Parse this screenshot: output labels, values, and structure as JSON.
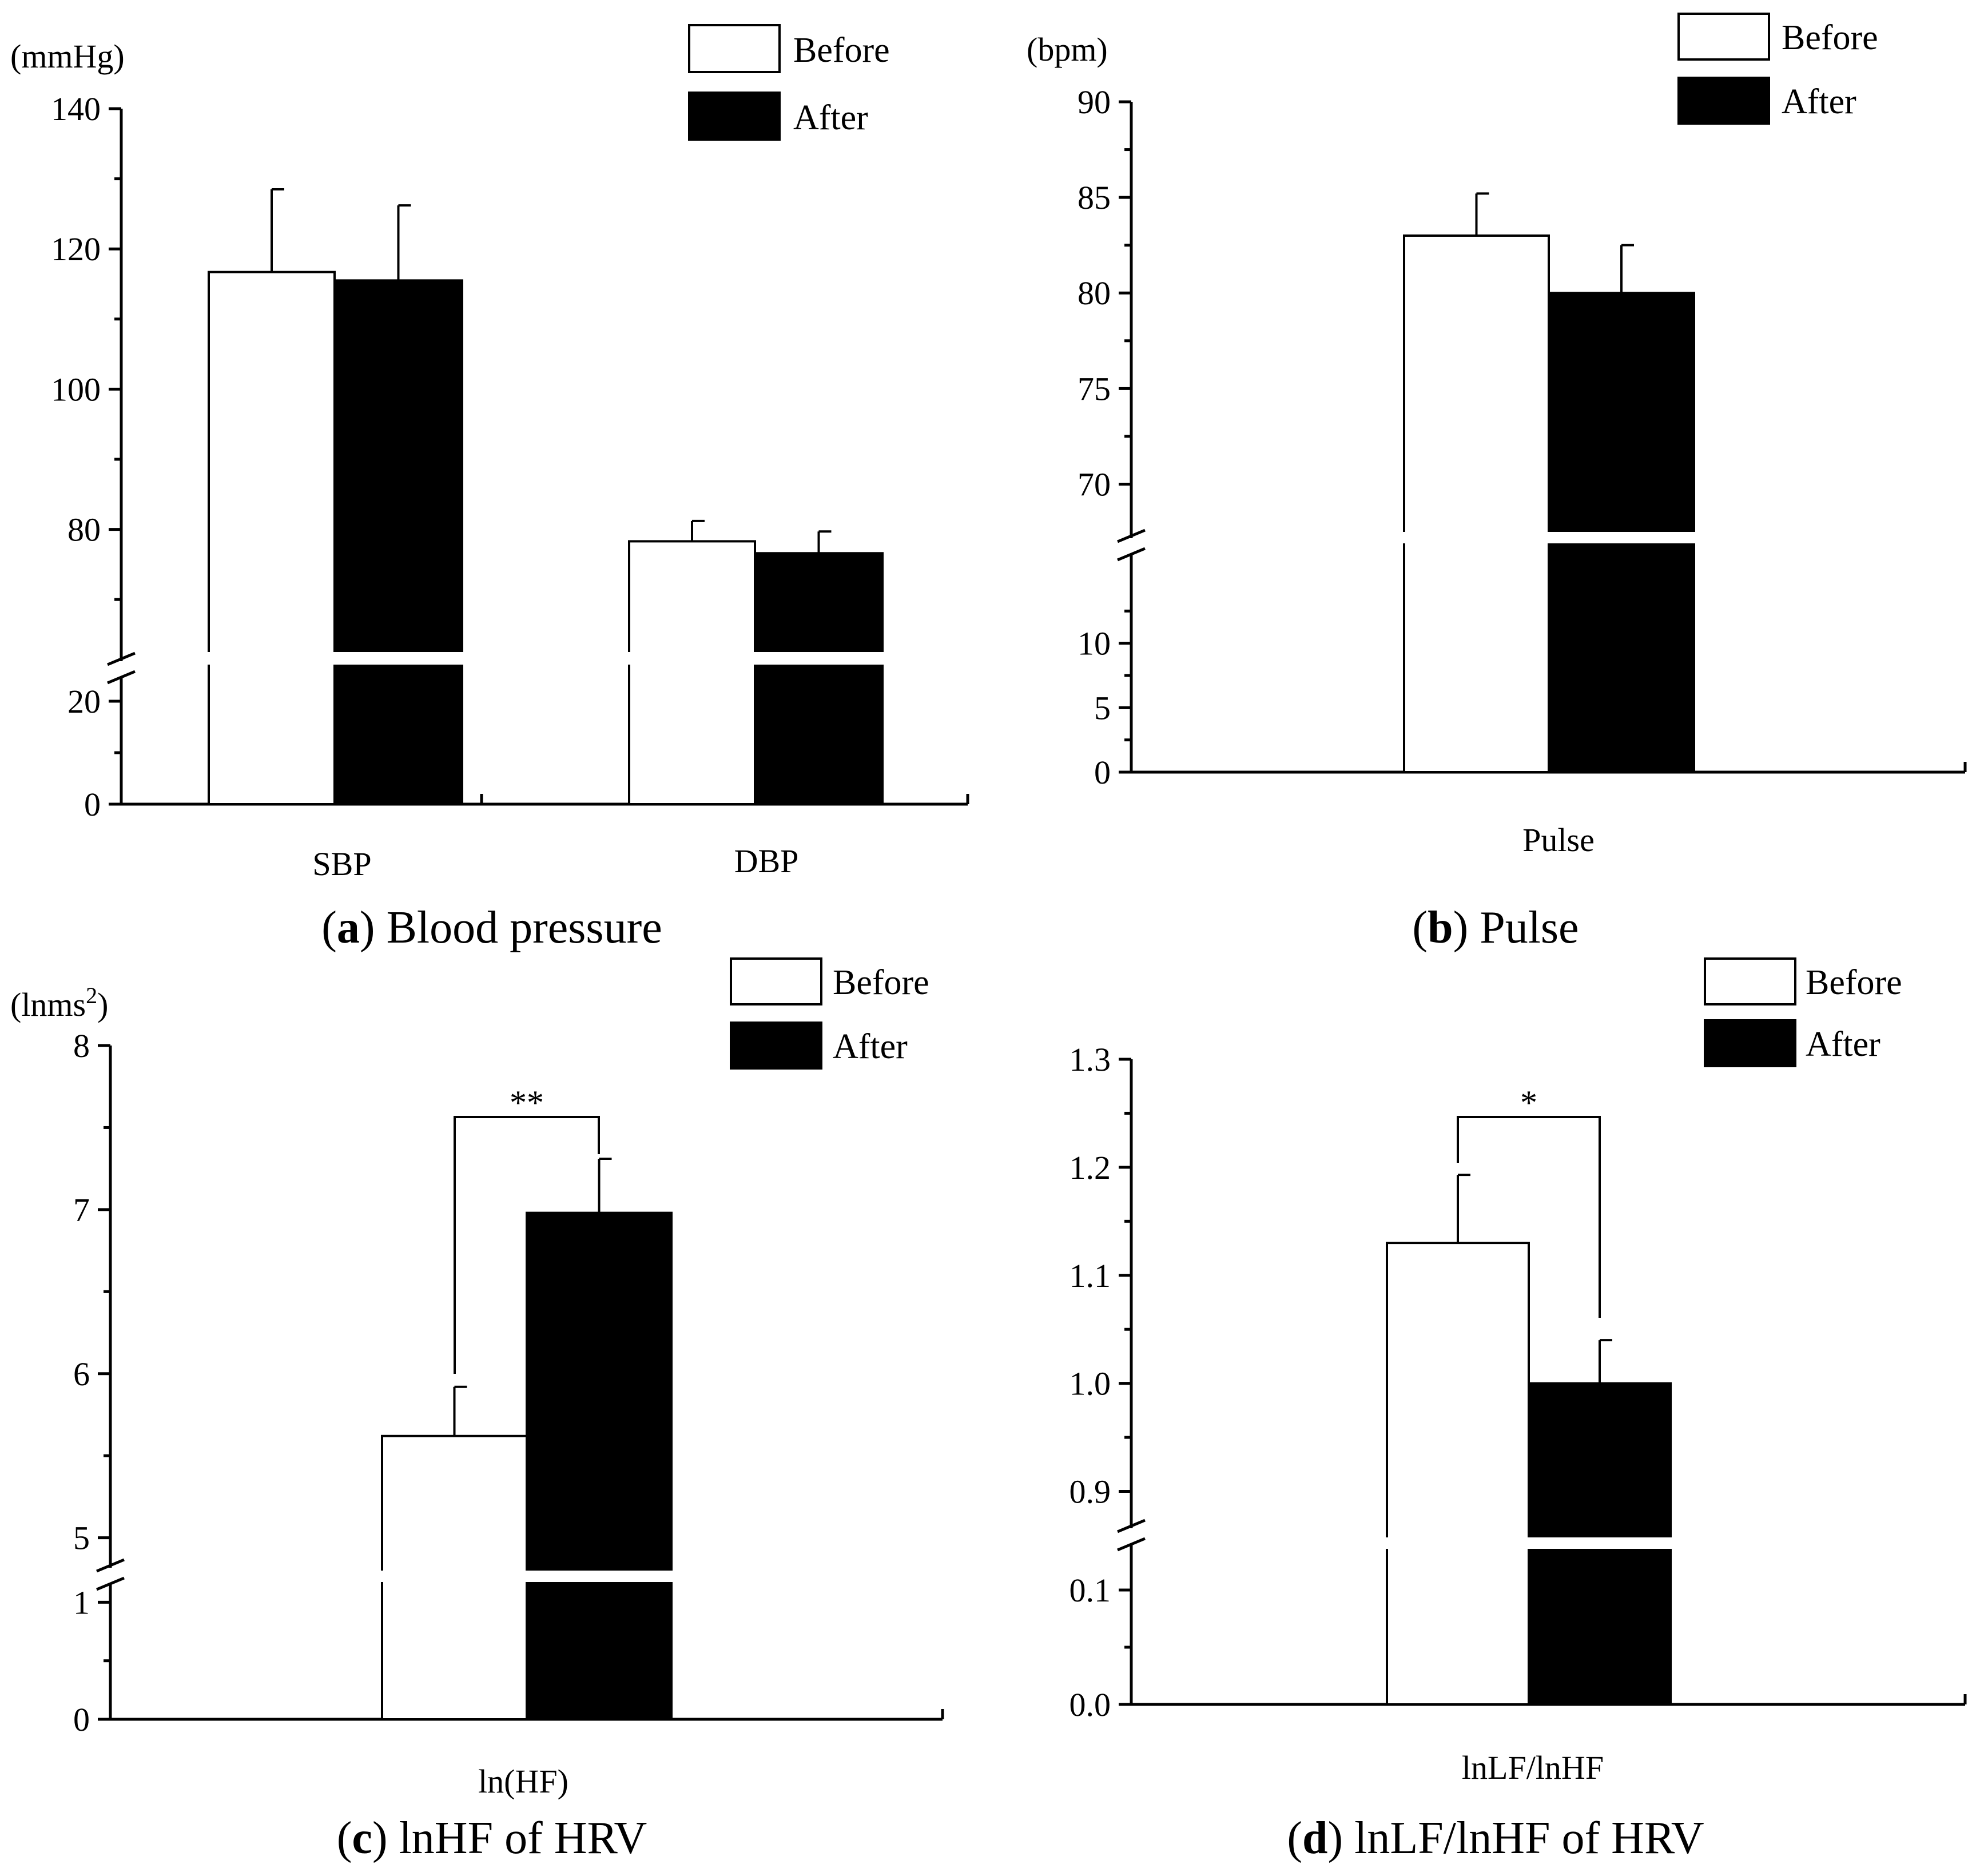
{
  "figure": {
    "panels": [
      {
        "id": "a",
        "caption_letter": "a",
        "caption_text": "Blood pressure",
        "unit": "(mmHg)"
      },
      {
        "id": "b",
        "caption_letter": "b",
        "caption_text": "Pulse",
        "unit": "(bpm)"
      },
      {
        "id": "c",
        "caption_letter": "c",
        "caption_text": "lnHF of HRV",
        "unit": "(lnms",
        "unit_sup": "2",
        "unit_close": ")"
      },
      {
        "id": "d",
        "caption_letter": "d",
        "caption_text": "lnLF/lnHF of HRV",
        "unit": ""
      }
    ]
  },
  "legend": {
    "before": "Before",
    "after": "After"
  },
  "colors": {
    "before_fill": "#ffffff",
    "after_fill": "#000000",
    "axis": "#000000"
  },
  "chart_data": [
    {
      "id": "a",
      "type": "bar",
      "title": "Blood pressure",
      "ylabel": "(mmHg)",
      "categories": [
        "SBP",
        "DBP"
      ],
      "series": [
        {
          "name": "Before",
          "values": [
            116.7,
            78.3
          ],
          "errors": [
            11.8,
            2.9
          ]
        },
        {
          "name": "After",
          "values": [
            115.5,
            76.6
          ],
          "errors": [
            10.7,
            3.1
          ]
        }
      ],
      "broken_axis": {
        "lower": [
          0,
          20
        ],
        "upper": [
          63,
          140
        ]
      },
      "ticks": [
        "0",
        "20",
        "80",
        "100",
        "120",
        "140"
      ]
    },
    {
      "id": "b",
      "type": "bar",
      "title": "Pulse",
      "ylabel": "(bpm)",
      "categories": [
        "Pulse"
      ],
      "series": [
        {
          "name": "Before",
          "values": [
            83.0
          ],
          "errors": [
            2.2
          ]
        },
        {
          "name": "After",
          "values": [
            80.0
          ],
          "errors": [
            2.5
          ]
        }
      ],
      "broken_axis": {
        "lower": [
          0,
          15
        ],
        "upper": [
          67.5,
          90
        ]
      },
      "ticks": [
        "0",
        "5",
        "10",
        "70",
        "75",
        "80",
        "85",
        "90"
      ]
    },
    {
      "id": "c",
      "type": "bar",
      "title": "lnHF of HRV",
      "ylabel": "(lnms2)",
      "categories": [
        "ln(HF)"
      ],
      "series": [
        {
          "name": "Before",
          "values": [
            5.62
          ],
          "errors": [
            0.3
          ]
        },
        {
          "name": "After",
          "values": [
            6.98
          ],
          "errors": [
            0.33
          ]
        }
      ],
      "broken_axis": {
        "lower": [
          0,
          1.3
        ],
        "upper": [
          4.8,
          8
        ]
      },
      "ticks": [
        "0",
        "1",
        "5",
        "6",
        "7",
        "8"
      ],
      "significance": "**"
    },
    {
      "id": "d",
      "type": "bar",
      "title": "lnLF/lnHF of HRV",
      "ylabel": "",
      "categories": [
        "lnLF/lnHF"
      ],
      "series": [
        {
          "name": "Before",
          "values": [
            1.13
          ],
          "errors": [
            0.063
          ]
        },
        {
          "name": "After",
          "values": [
            1.0
          ],
          "errors": [
            0.04
          ]
        }
      ],
      "broken_axis": {
        "lower": [
          0,
          0.15
        ],
        "upper": [
          0.85,
          1.3
        ]
      },
      "ticks": [
        "0.0",
        "0.1",
        "0.9",
        "1.0",
        "1.1",
        "1.2",
        "1.3"
      ],
      "significance": "*"
    }
  ]
}
